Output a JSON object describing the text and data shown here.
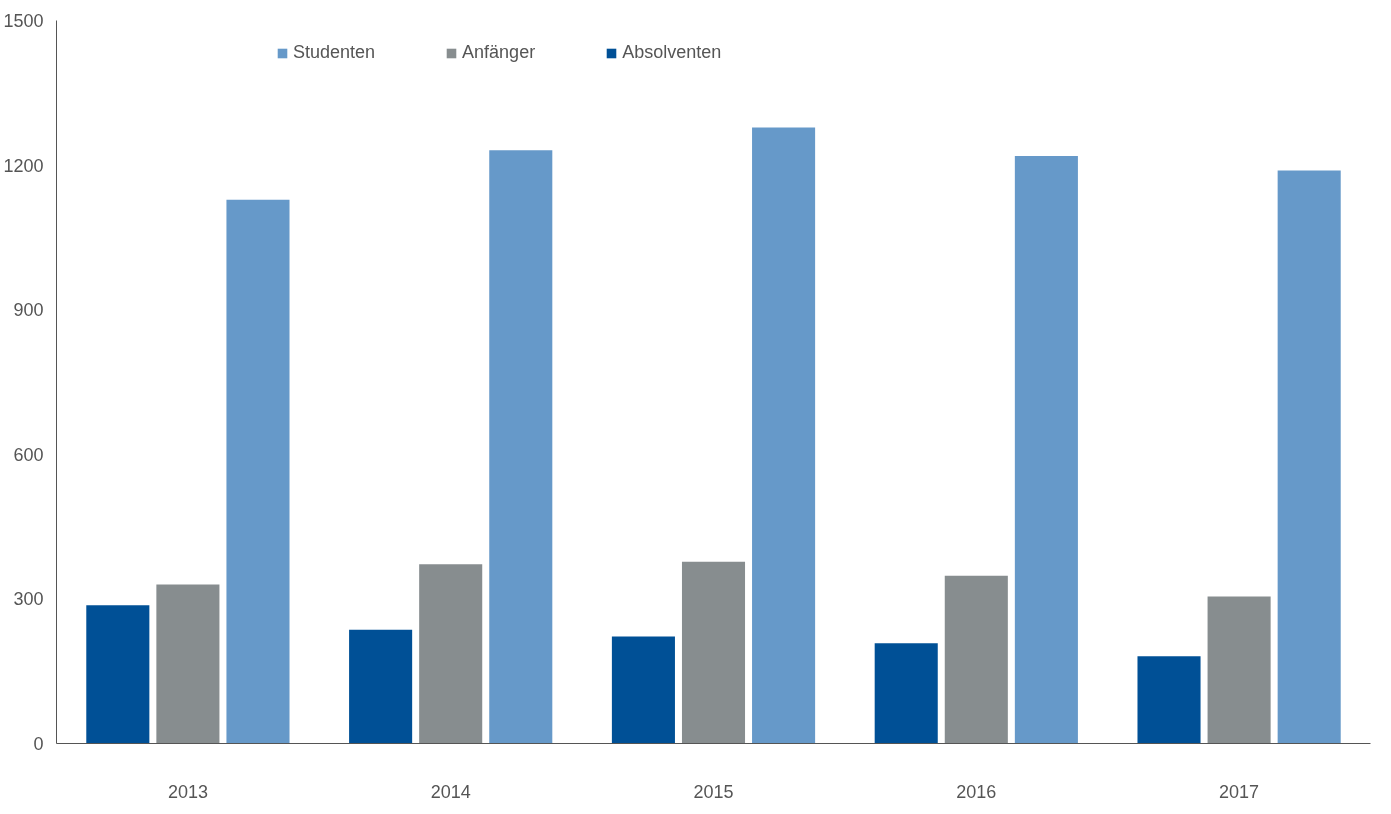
{
  "chart_data": {
    "type": "bar",
    "categories": [
      "2013",
      "2014",
      "2015",
      "2016",
      "2017"
    ],
    "series": [
      {
        "name": "Studenten",
        "color": "#6699c9",
        "values": [
          1128,
          1231,
          1278,
          1219,
          1189
        ]
      },
      {
        "name": "Anfänger",
        "color": "#878d8f",
        "values": [
          330,
          372,
          377,
          348,
          305
        ]
      },
      {
        "name": "Absolventen",
        "color": "#005096",
        "values": [
          287,
          236,
          222,
          208,
          181
        ]
      }
    ],
    "ylim": [
      0,
      1500
    ],
    "yticks": [
      0,
      300,
      600,
      900,
      1200,
      1500
    ],
    "grid": false,
    "legend": "top"
  }
}
